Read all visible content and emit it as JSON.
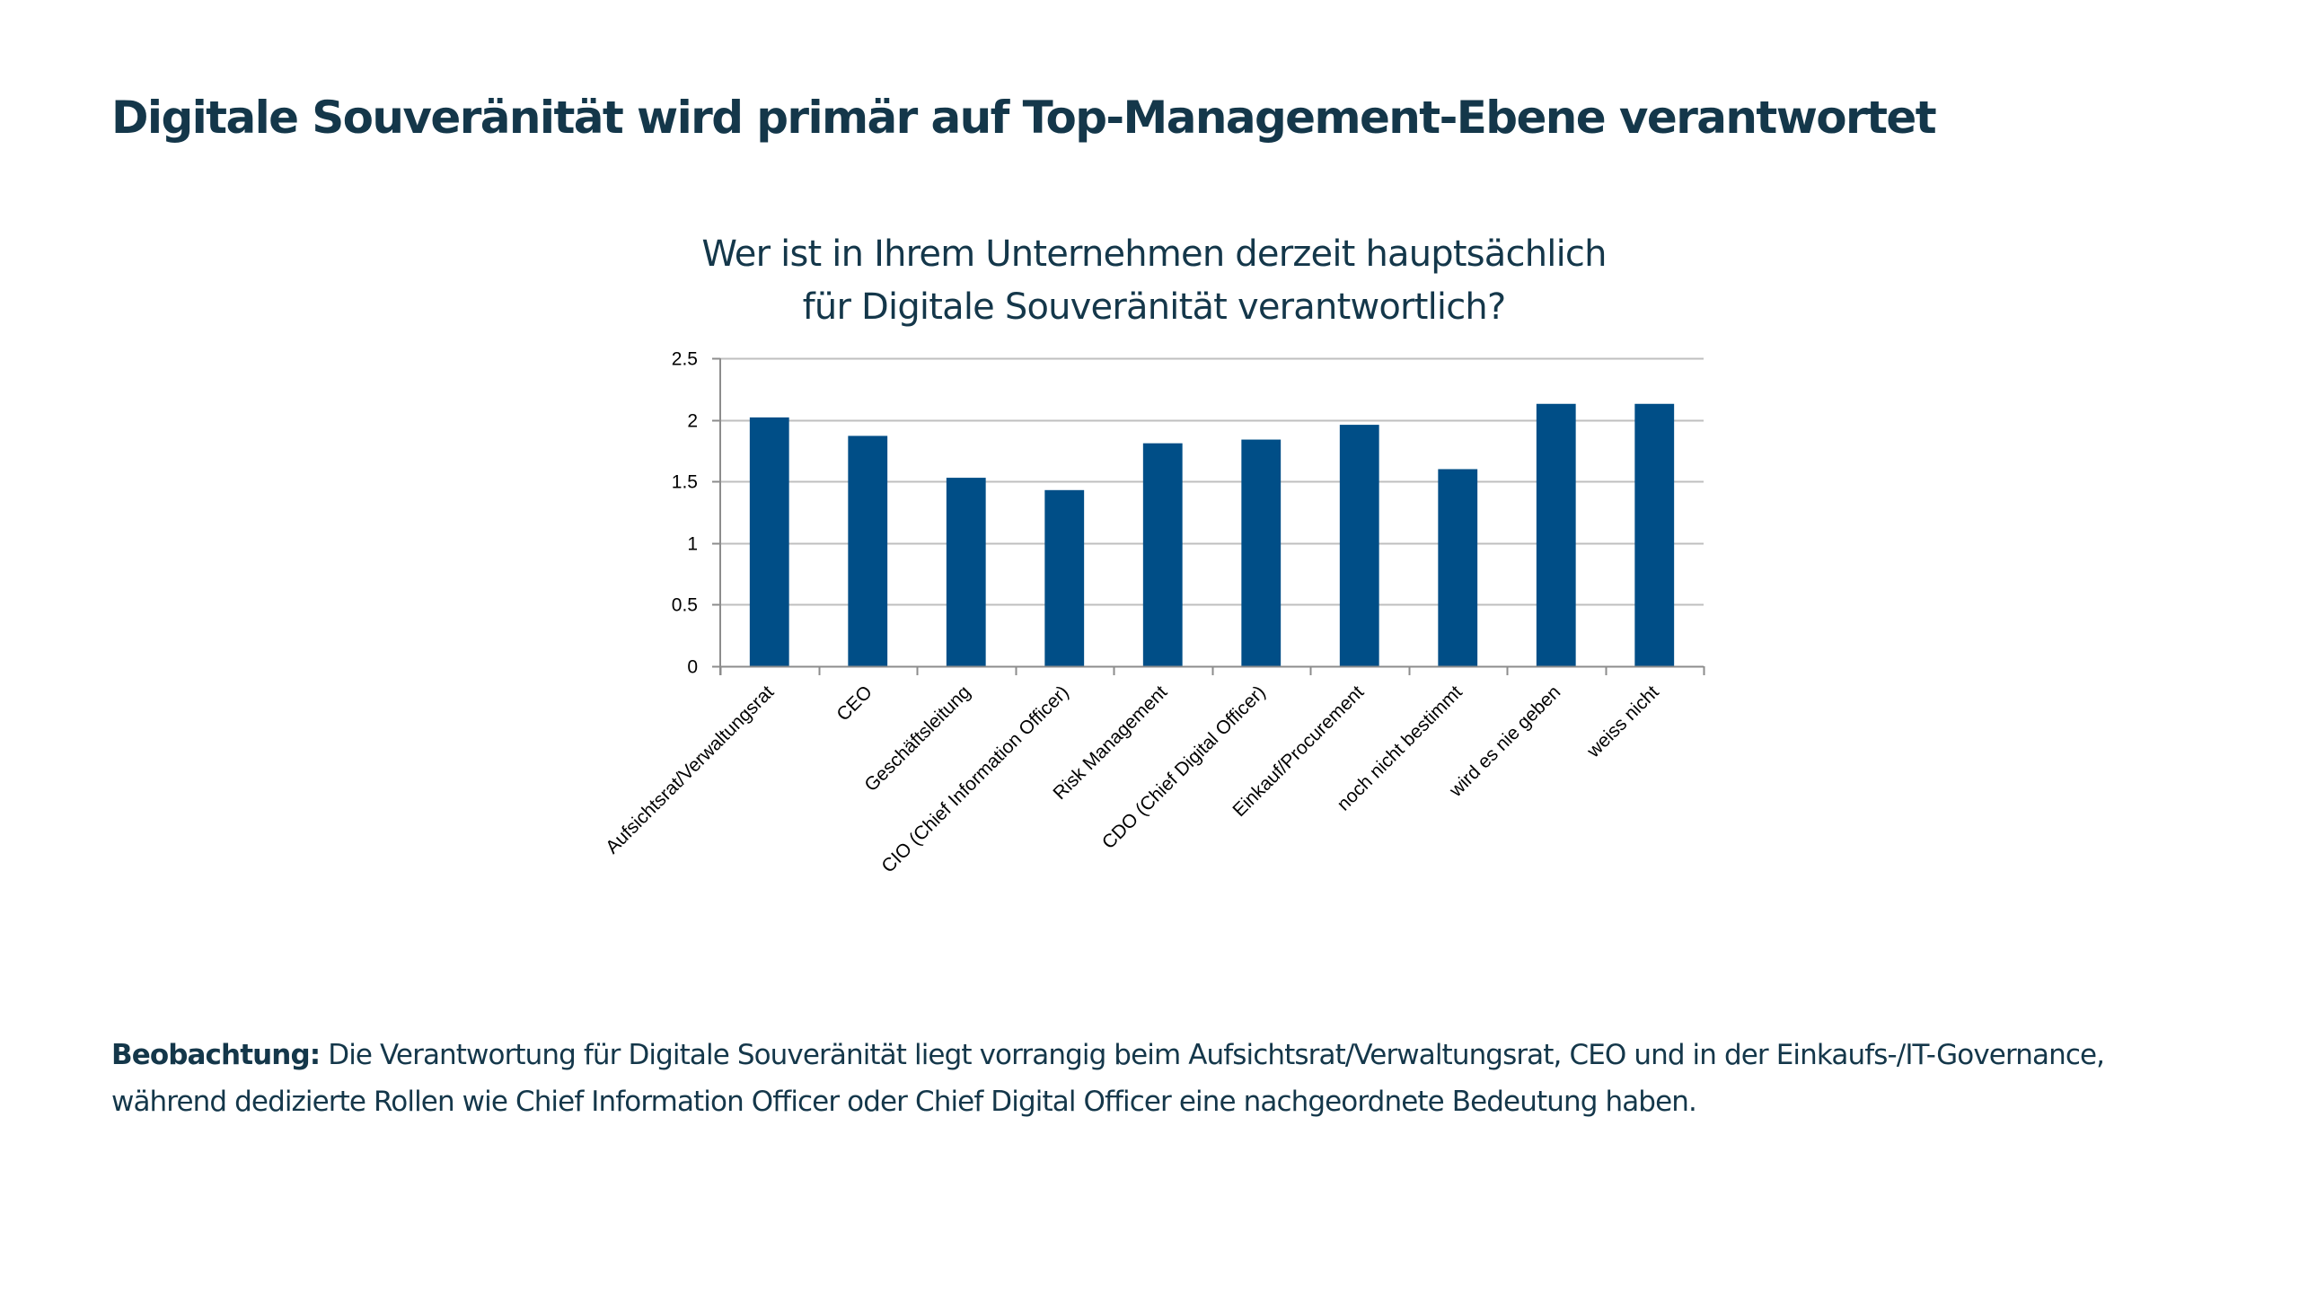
{
  "page": {
    "title": "Digitale Souveränität wird primär auf Top-Management-Ebene verantwortet"
  },
  "chart_data": {
    "type": "bar",
    "title_lines": [
      "Wer ist in Ihrem Unternehmen derzeit hauptsächlich",
      "für Digitale Souveränität verantwortlich?"
    ],
    "xlabel": "",
    "ylabel": "",
    "categories": [
      "Aufsichtsrat/Verwaltungsrat",
      "CEO",
      "Geschäftsleitung",
      "CIO (Chief Information Officer)",
      "Risk Management",
      "CDO (Chief Digital Officer)",
      "Einkauf/Procurement",
      "noch nicht bestimmt",
      "wird es nie geben",
      "weiss nicht"
    ],
    "values": [
      2.02,
      1.87,
      1.53,
      1.43,
      1.81,
      1.84,
      1.96,
      1.6,
      2.13,
      2.13
    ],
    "ylim": [
      0,
      2.5
    ],
    "yticks": [
      0,
      0.5,
      1,
      1.5,
      2,
      2.5
    ],
    "ytick_labels": [
      "0",
      "0.5",
      "1",
      "1.5",
      "2",
      "2.5"
    ],
    "grid": true,
    "legend": "none",
    "colors": {
      "bar": "#004e87",
      "gridline": "#bfbfbf",
      "axis": "#8c8c8c"
    }
  },
  "observation": {
    "label": "Beobachtung:",
    "text": " Die Verantwortung für Digitale Souveränität liegt vorrangig beim Aufsichtsrat/Verwaltungsrat, CEO und in der Einkaufs-/IT-Governance, während dedizierte Rollen wie Chief Information Officer oder Chief Digital Officer eine nachgeordnete Bedeutung haben."
  }
}
